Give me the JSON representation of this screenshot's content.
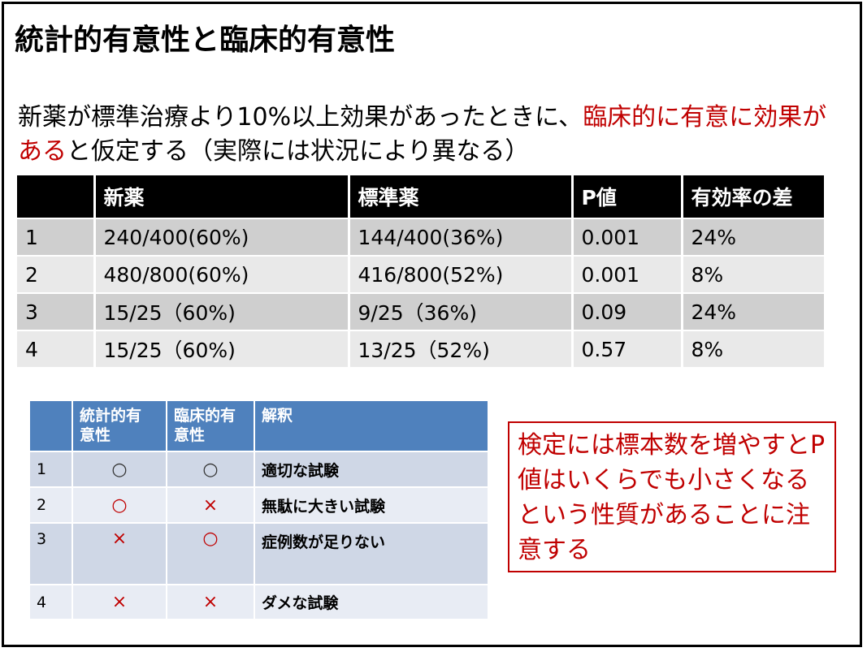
{
  "title": "統計的有意性と臨床的有意性",
  "intro": {
    "part1": "新薬が標準治療より10%以上効果があったときに、",
    "red": "臨床的に有意に効果がある",
    "part2": "と仮定する（実際には状況により異なる）"
  },
  "main_table": {
    "headers": [
      "",
      "新薬",
      "標準薬",
      "P値",
      "有効率の差"
    ],
    "rows": [
      [
        "1",
        "240/400(60%)",
        "144/400(36%)",
        "0.001",
        "24%"
      ],
      [
        "2",
        "480/800(60%)",
        "416/800(52%)",
        "0.001",
        "8%"
      ],
      [
        "3",
        "15/25（60%)",
        "9/25（36%)",
        "0.09",
        "24%"
      ],
      [
        "4",
        "15/25（60%)",
        "13/25（52%)",
        "0.57",
        "8%"
      ]
    ]
  },
  "interp_table": {
    "headers": [
      "",
      "統計的有意性",
      "臨床的有意性",
      "解釈"
    ],
    "rows": [
      [
        "1",
        "○",
        "○",
        "適切な試験"
      ],
      [
        "2",
        "○",
        "×",
        "無駄に大きい試験"
      ],
      [
        "3",
        "×",
        "○",
        "症例数が足りない"
      ],
      [
        "4",
        "×",
        "×",
        "ダメな試験"
      ]
    ]
  },
  "note": "検定には標本数を増やすとP値はいくらでも小さくなるという性質があることに注意する",
  "colors": {
    "accent_red": "#c00000",
    "header_black": "#000000",
    "header_blue": "#4f81bd"
  }
}
